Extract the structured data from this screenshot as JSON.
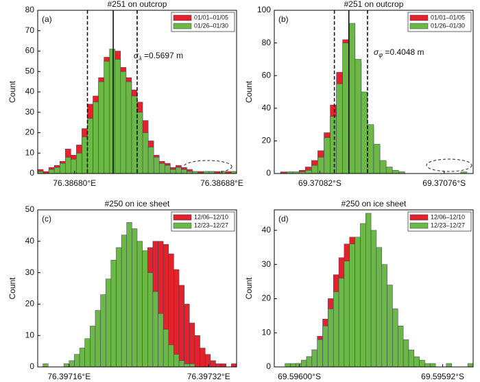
{
  "chart_data": [
    {
      "type": "histogram",
      "title": "#251 on outcrop",
      "panel_label": "(a)",
      "ylabel": "Count",
      "xlim": [
        76.38678,
        76.386888
      ],
      "ylim": [
        0,
        80
      ],
      "yticks": [
        0,
        10,
        20,
        30,
        40,
        50,
        60,
        70,
        80
      ],
      "xticks": [
        {
          "value": 76.3868,
          "label": "76.38680°E"
        },
        {
          "value": 76.38688,
          "label": "76.38688°E"
        }
      ],
      "bins": [
        76.38678,
        76.386783,
        76.386786,
        76.386789,
        76.386792,
        76.386795,
        76.386798,
        76.386801,
        76.386804,
        76.386807,
        76.38681,
        76.386813,
        76.386816,
        76.386819,
        76.386822,
        76.386825,
        76.386828,
        76.386831,
        76.386834,
        76.386837,
        76.38684,
        76.386843,
        76.386846,
        76.386849,
        76.386852,
        76.386855,
        76.386858,
        76.386861,
        76.386864,
        76.386867,
        76.38687,
        76.386873,
        76.386876,
        76.386879,
        76.386882,
        76.386885,
        76.386888
      ],
      "series": [
        {
          "name": "01/01–01/05",
          "color": "#e3232c",
          "values": [
            2,
            1,
            3,
            4,
            6,
            12,
            9,
            14,
            22,
            34,
            38,
            47,
            57,
            58,
            60,
            52,
            47,
            41,
            35,
            26,
            16,
            9,
            6,
            5,
            3,
            4,
            3,
            2,
            1,
            1,
            1,
            1,
            1,
            0,
            1,
            1
          ]
        },
        {
          "name": "01/26–01/30",
          "color": "#6cb846",
          "values": [
            1,
            0,
            2,
            3,
            5,
            8,
            7,
            10,
            18,
            27,
            35,
            45,
            55,
            61,
            56,
            50,
            45,
            38,
            30,
            20,
            13,
            8,
            5,
            4,
            2,
            3,
            2,
            1,
            1,
            0,
            1,
            1,
            0,
            1,
            0,
            1
          ]
        }
      ],
      "vlines": [
        {
          "value": 76.386807,
          "style": "dashed"
        },
        {
          "value": 76.386821,
          "style": "solid"
        },
        {
          "value": 76.386834,
          "style": "dashed"
        }
      ],
      "annotation": {
        "symbol": "σ",
        "subscript": "λ",
        "text": " =0.5697 m"
      },
      "legend": "upper right"
    },
    {
      "type": "histogram",
      "title": "#251 on outcrop",
      "panel_label": "(b)",
      "ylabel": "Count",
      "xlim": [
        -69.370842,
        -69.370746
      ],
      "ylim": [
        0,
        100
      ],
      "yticks": [
        0,
        20,
        40,
        60,
        80,
        100
      ],
      "xticks": [
        {
          "value": -69.37082,
          "label": "69.37082°S"
        },
        {
          "value": -69.37076,
          "label": "69.37076°S"
        }
      ],
      "bins": [
        -69.370842,
        -69.370839,
        -69.370836,
        -69.370833,
        -69.37083,
        -69.370827,
        -69.370824,
        -69.370821,
        -69.370818,
        -69.370815,
        -69.370812,
        -69.370809,
        -69.370806,
        -69.370803,
        -69.3708,
        -69.370797,
        -69.370794,
        -69.370791,
        -69.370788,
        -69.370785,
        -69.370782,
        -69.370779,
        -69.370776,
        -69.370773,
        -69.37077,
        -69.370767,
        -69.370764,
        -69.370761,
        -69.370758,
        -69.370755,
        -69.370752,
        -69.370749,
        -69.370746
      ],
      "series": [
        {
          "name": "01/01–01/05",
          "color": "#e3232c",
          "values": [
            0,
            1,
            1,
            1,
            2,
            4,
            8,
            14,
            25,
            42,
            62,
            82,
            85,
            68,
            48,
            28,
            17,
            7,
            3,
            1,
            1,
            0,
            0,
            0,
            0,
            0,
            0,
            0,
            0,
            0,
            0,
            0
          ]
        },
        {
          "name": "01/26–01/30",
          "color": "#6cb846",
          "values": [
            0,
            0,
            1,
            1,
            1,
            2,
            5,
            10,
            22,
            35,
            55,
            80,
            92,
            70,
            50,
            30,
            18,
            8,
            4,
            2,
            1,
            0,
            0,
            0,
            0,
            0,
            0,
            0,
            0,
            0,
            1,
            0
          ]
        }
      ],
      "vlines": [
        {
          "value": -69.370813,
          "style": "dashed"
        },
        {
          "value": -69.370806,
          "style": "solid"
        },
        {
          "value": -69.370797,
          "style": "dashed"
        }
      ],
      "annotation": {
        "symbol": "σ",
        "subscript": "φ",
        "text": " =0.4048 m"
      },
      "legend": "upper right"
    },
    {
      "type": "histogram",
      "title": "#250 on ice sheet",
      "panel_label": "(c)",
      "ylabel": "Count",
      "xlim": [
        76.397124,
        76.397352
      ],
      "ylim": [
        0,
        50
      ],
      "yticks": [
        0,
        10,
        20,
        30,
        40,
        50
      ],
      "xticks": [
        {
          "value": 76.39716,
          "label": "76.39716°E"
        },
        {
          "value": 76.39732,
          "label": "76.39732°E"
        }
      ],
      "bins": [
        76.397124,
        76.39713,
        76.397136,
        76.397142,
        76.397148,
        76.397154,
        76.39716,
        76.397166,
        76.397172,
        76.397178,
        76.397184,
        76.39719,
        76.397196,
        76.397202,
        76.397208,
        76.397214,
        76.39722,
        76.397226,
        76.397232,
        76.397238,
        76.397244,
        76.39725,
        76.397256,
        76.397262,
        76.397268,
        76.397274,
        76.39728,
        76.397286,
        76.397292,
        76.397298,
        76.397304,
        76.39731,
        76.397316,
        76.397322,
        76.397328,
        76.397334,
        76.39734,
        76.397346,
        76.397352
      ],
      "series": [
        {
          "name": "12/06–12/10",
          "color": "#e3232c",
          "values": [
            0,
            0,
            0,
            0,
            0,
            0,
            1,
            1,
            2,
            3,
            5,
            7,
            9,
            12,
            15,
            19,
            22,
            25,
            29,
            33,
            36,
            38,
            40,
            40,
            39,
            36,
            31,
            26,
            20,
            14,
            10,
            6,
            4,
            2,
            1,
            1,
            0,
            1
          ]
        },
        {
          "name": "12/23–12/27",
          "color": "#6cb846",
          "values": [
            0,
            1,
            0,
            0,
            0,
            1,
            2,
            4,
            6,
            9,
            13,
            18,
            23,
            28,
            34,
            38,
            42,
            46,
            44,
            40,
            37,
            30,
            24,
            17,
            12,
            7,
            4,
            2,
            1,
            1,
            0,
            0,
            0,
            0,
            0,
            0,
            0,
            0
          ]
        }
      ],
      "legend": "upper right"
    },
    {
      "type": "histogram",
      "title": "#250 on ice sheet",
      "panel_label": "(d)",
      "ylabel": "Count",
      "xlim": [
        -69.596014,
        -69.595903
      ],
      "ylim": [
        0,
        46
      ],
      "yticks": [
        0,
        10,
        20,
        30,
        40
      ],
      "xticks": [
        {
          "value": -69.596,
          "label": "69.59600°S"
        },
        {
          "value": -69.59592,
          "label": "69.59592°S"
        }
      ],
      "bins": [
        -69.596014,
        -69.596011,
        -69.596008,
        -69.596005,
        -69.596002,
        -69.595999,
        -69.595996,
        -69.595993,
        -69.59599,
        -69.595987,
        -69.595984,
        -69.595981,
        -69.595978,
        -69.595975,
        -69.595972,
        -69.595969,
        -69.595966,
        -69.595963,
        -69.59596,
        -69.595957,
        -69.595954,
        -69.595951,
        -69.595948,
        -69.595945,
        -69.595942,
        -69.595939,
        -69.595936,
        -69.595933,
        -69.59593,
        -69.595927,
        -69.595924,
        -69.595921,
        -69.595918,
        -69.595915,
        -69.595912,
        -69.595909,
        -69.595906,
        -69.595903
      ],
      "series": [
        {
          "name": "12/06–12/10",
          "color": "#e3232c",
          "values": [
            0,
            0,
            0,
            0,
            1,
            1,
            3,
            5,
            9,
            14,
            20,
            27,
            32,
            36,
            38,
            37,
            38,
            36,
            32,
            27,
            20,
            15,
            10,
            7,
            4,
            2,
            1,
            1,
            0,
            0,
            0,
            0,
            0,
            0,
            0,
            0,
            0
          ]
        },
        {
          "name": "12/23–12/27",
          "color": "#6cb846",
          "values": [
            0,
            0,
            1,
            1,
            1,
            2,
            3,
            5,
            8,
            12,
            17,
            22,
            26,
            31,
            36,
            38,
            42,
            45,
            40,
            35,
            30,
            24,
            17,
            12,
            8,
            5,
            3,
            2,
            1,
            1,
            0,
            0,
            1,
            0,
            0,
            0,
            1
          ]
        }
      ],
      "legend": "upper right"
    }
  ]
}
